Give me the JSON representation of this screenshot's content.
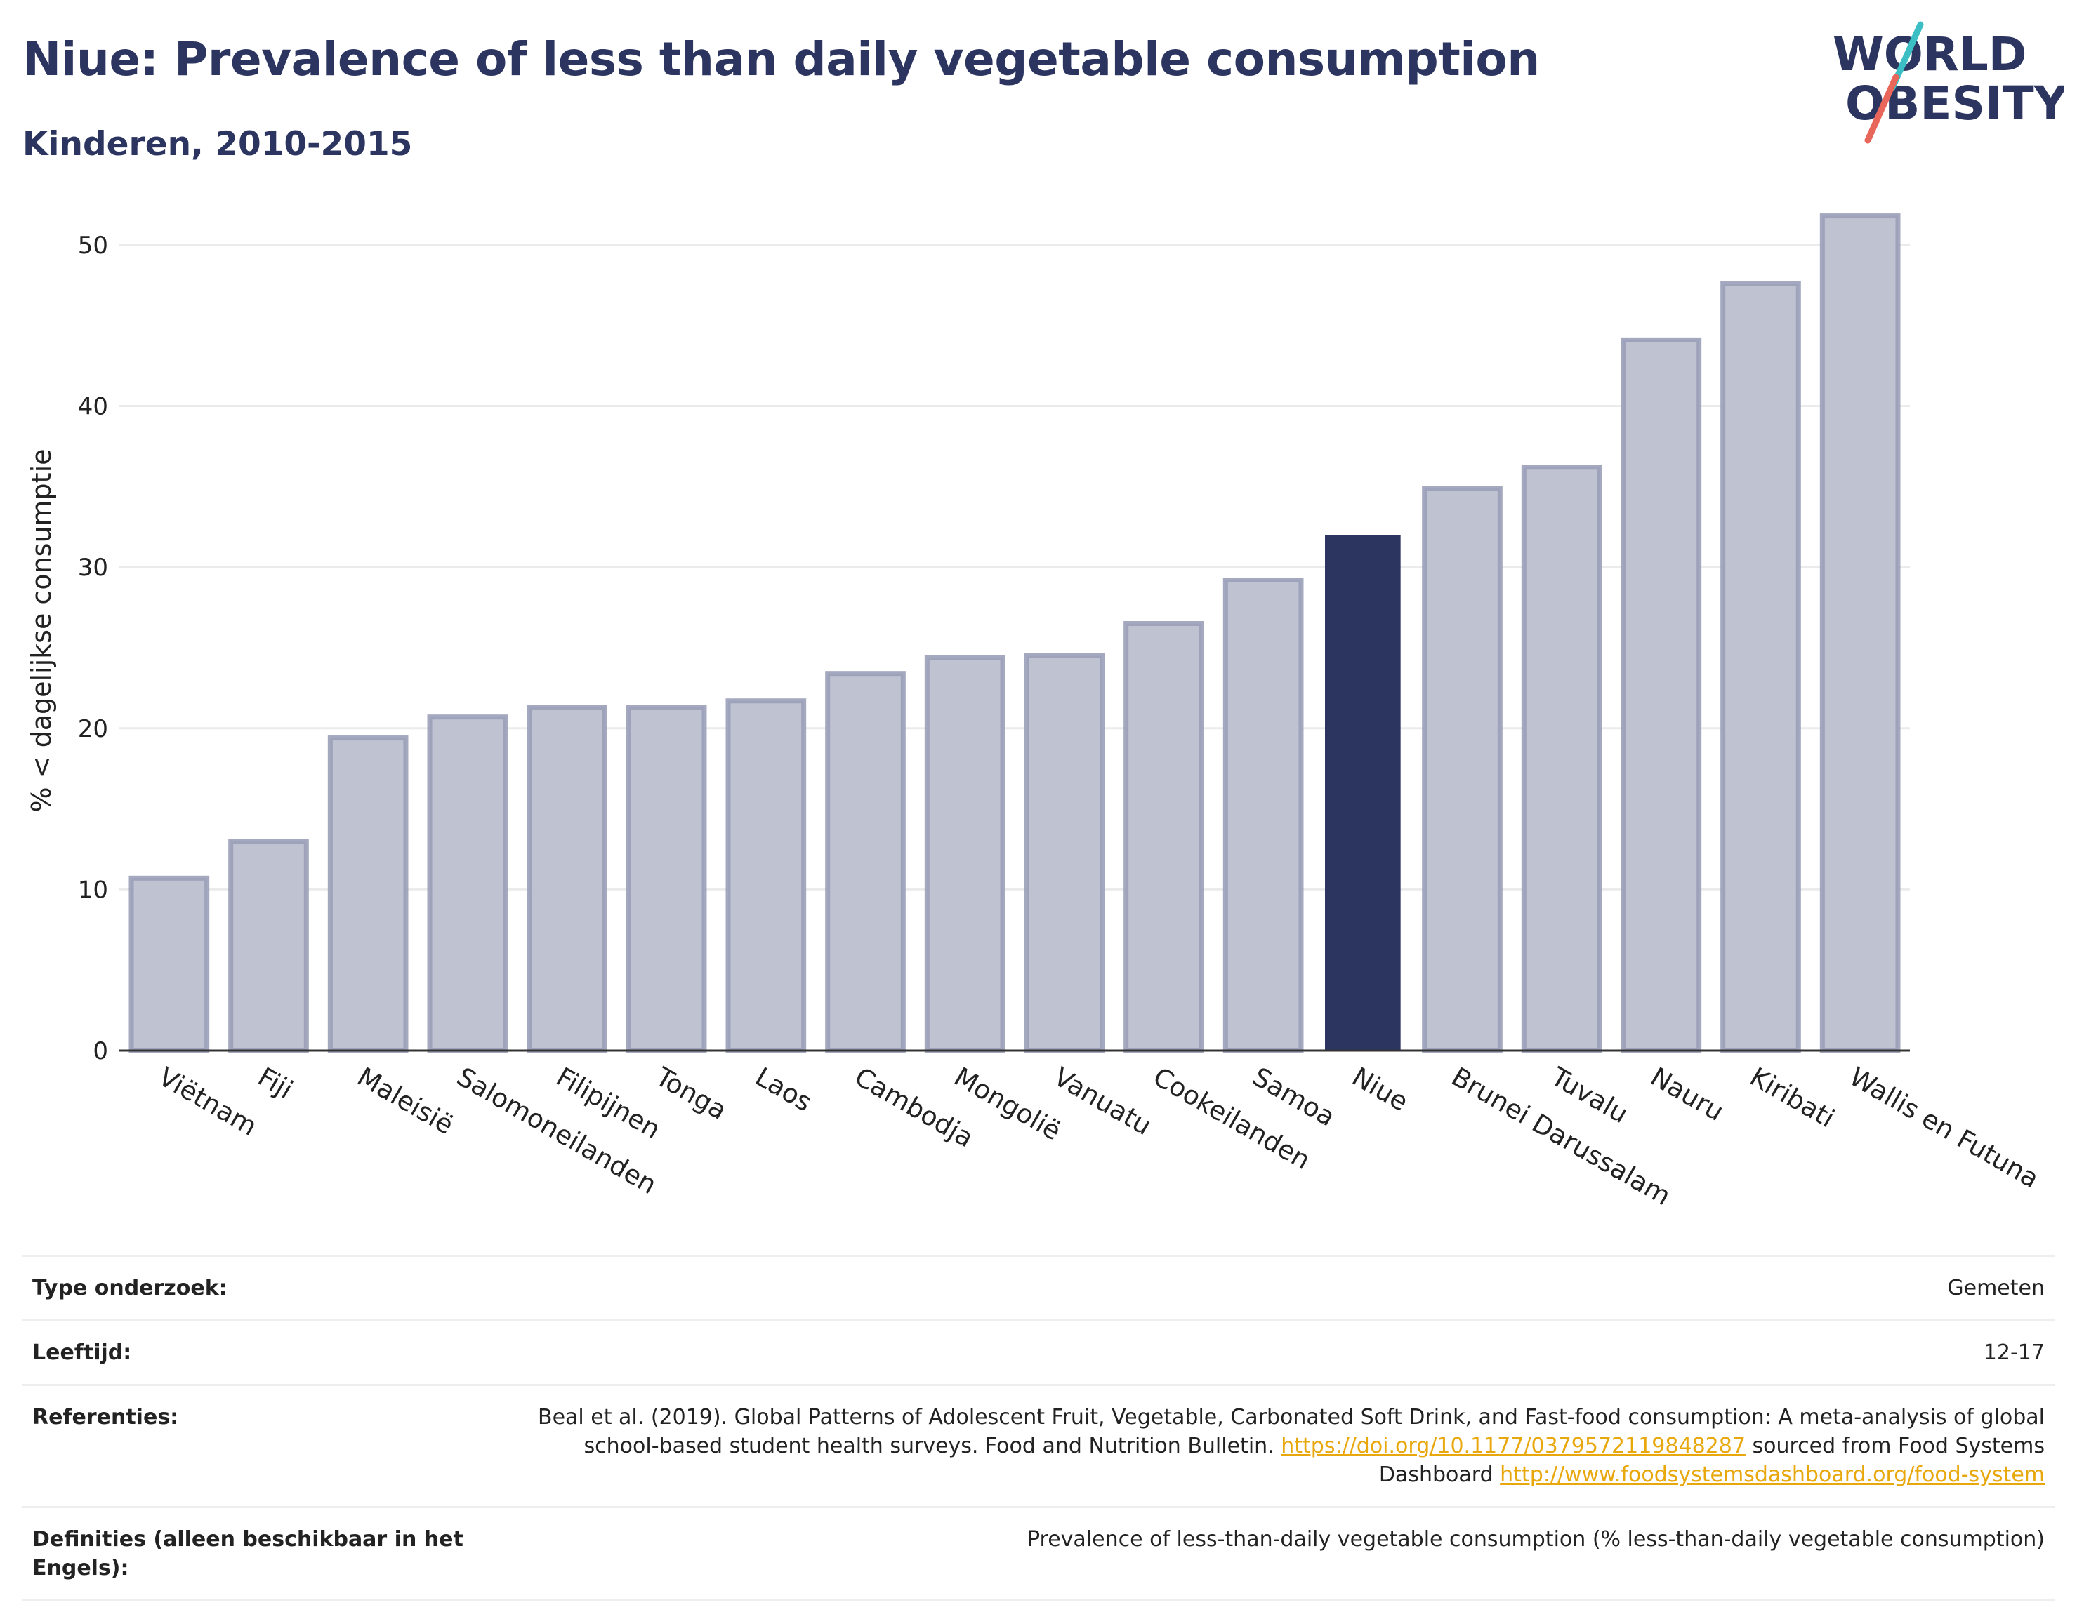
{
  "header": {
    "title": "Niue: Prevalence of less than daily vegetable consumption",
    "subtitle": "Kinderen, 2010-2015"
  },
  "logo": {
    "line1": "WORLD",
    "line2": "OBESITY",
    "icon": "world-obesity-logo"
  },
  "colors": {
    "highlight": "#2c3560",
    "bar": "#bfc2d0",
    "bar_border": "#9aa0b8",
    "title": "#2c3560",
    "link": "#e8a80c",
    "logo_teal": "#3bbfc4",
    "logo_red": "#e9675a"
  },
  "chart_data": {
    "type": "bar",
    "title": "Niue: Prevalence of less than daily vegetable consumption",
    "subtitle": "Kinderen, 2010-2015",
    "ylabel": "% < dagelijkse consumptie",
    "xlabel": "",
    "ylim": [
      0,
      53
    ],
    "yticks": [
      0,
      10,
      20,
      30,
      40,
      50
    ],
    "grid": true,
    "categories": [
      "Viëtnam",
      "Fiji",
      "Maleisië",
      "Salomoneilanden",
      "Filipijnen",
      "Tonga",
      "Laos",
      "Cambodja",
      "Mongolië",
      "Vanuatu",
      "Cookeilanden",
      "Samoa",
      "Niue",
      "Brunei Darussalam",
      "Tuvalu",
      "Nauru",
      "Kiribati",
      "Wallis en Futuna"
    ],
    "values": [
      10.7,
      13.0,
      19.4,
      20.7,
      21.3,
      21.3,
      21.7,
      23.4,
      24.4,
      24.5,
      26.5,
      29.2,
      32.0,
      34.9,
      36.2,
      44.1,
      47.6,
      51.8
    ],
    "highlight": "Niue"
  },
  "info": [
    {
      "key": "Type onderzoek:",
      "value": "Gemeten"
    },
    {
      "key": "Leeftijd:",
      "value": "12-17"
    },
    {
      "key": "Referenties:",
      "value_parts": {
        "text1": "Beal et al. (2019). Global Patterns of Adolescent Fruit, Vegetable, Carbonated Soft Drink, and Fast-food consumption: A meta-analysis of global school-based student health surveys. Food and Nutrition Bulletin. ",
        "link1": "https://doi.org/10.1177/0379572119848287",
        "text2": " sourced from Food Systems Dashboard ",
        "link2": "http://www.foodsystemsdashboard.org/food-system"
      }
    },
    {
      "key": "Definities (alleen beschikbaar in het Engels):",
      "value": "Prevalence of less-than-daily vegetable consumption (% less-than-daily vegetable consumption)"
    }
  ]
}
